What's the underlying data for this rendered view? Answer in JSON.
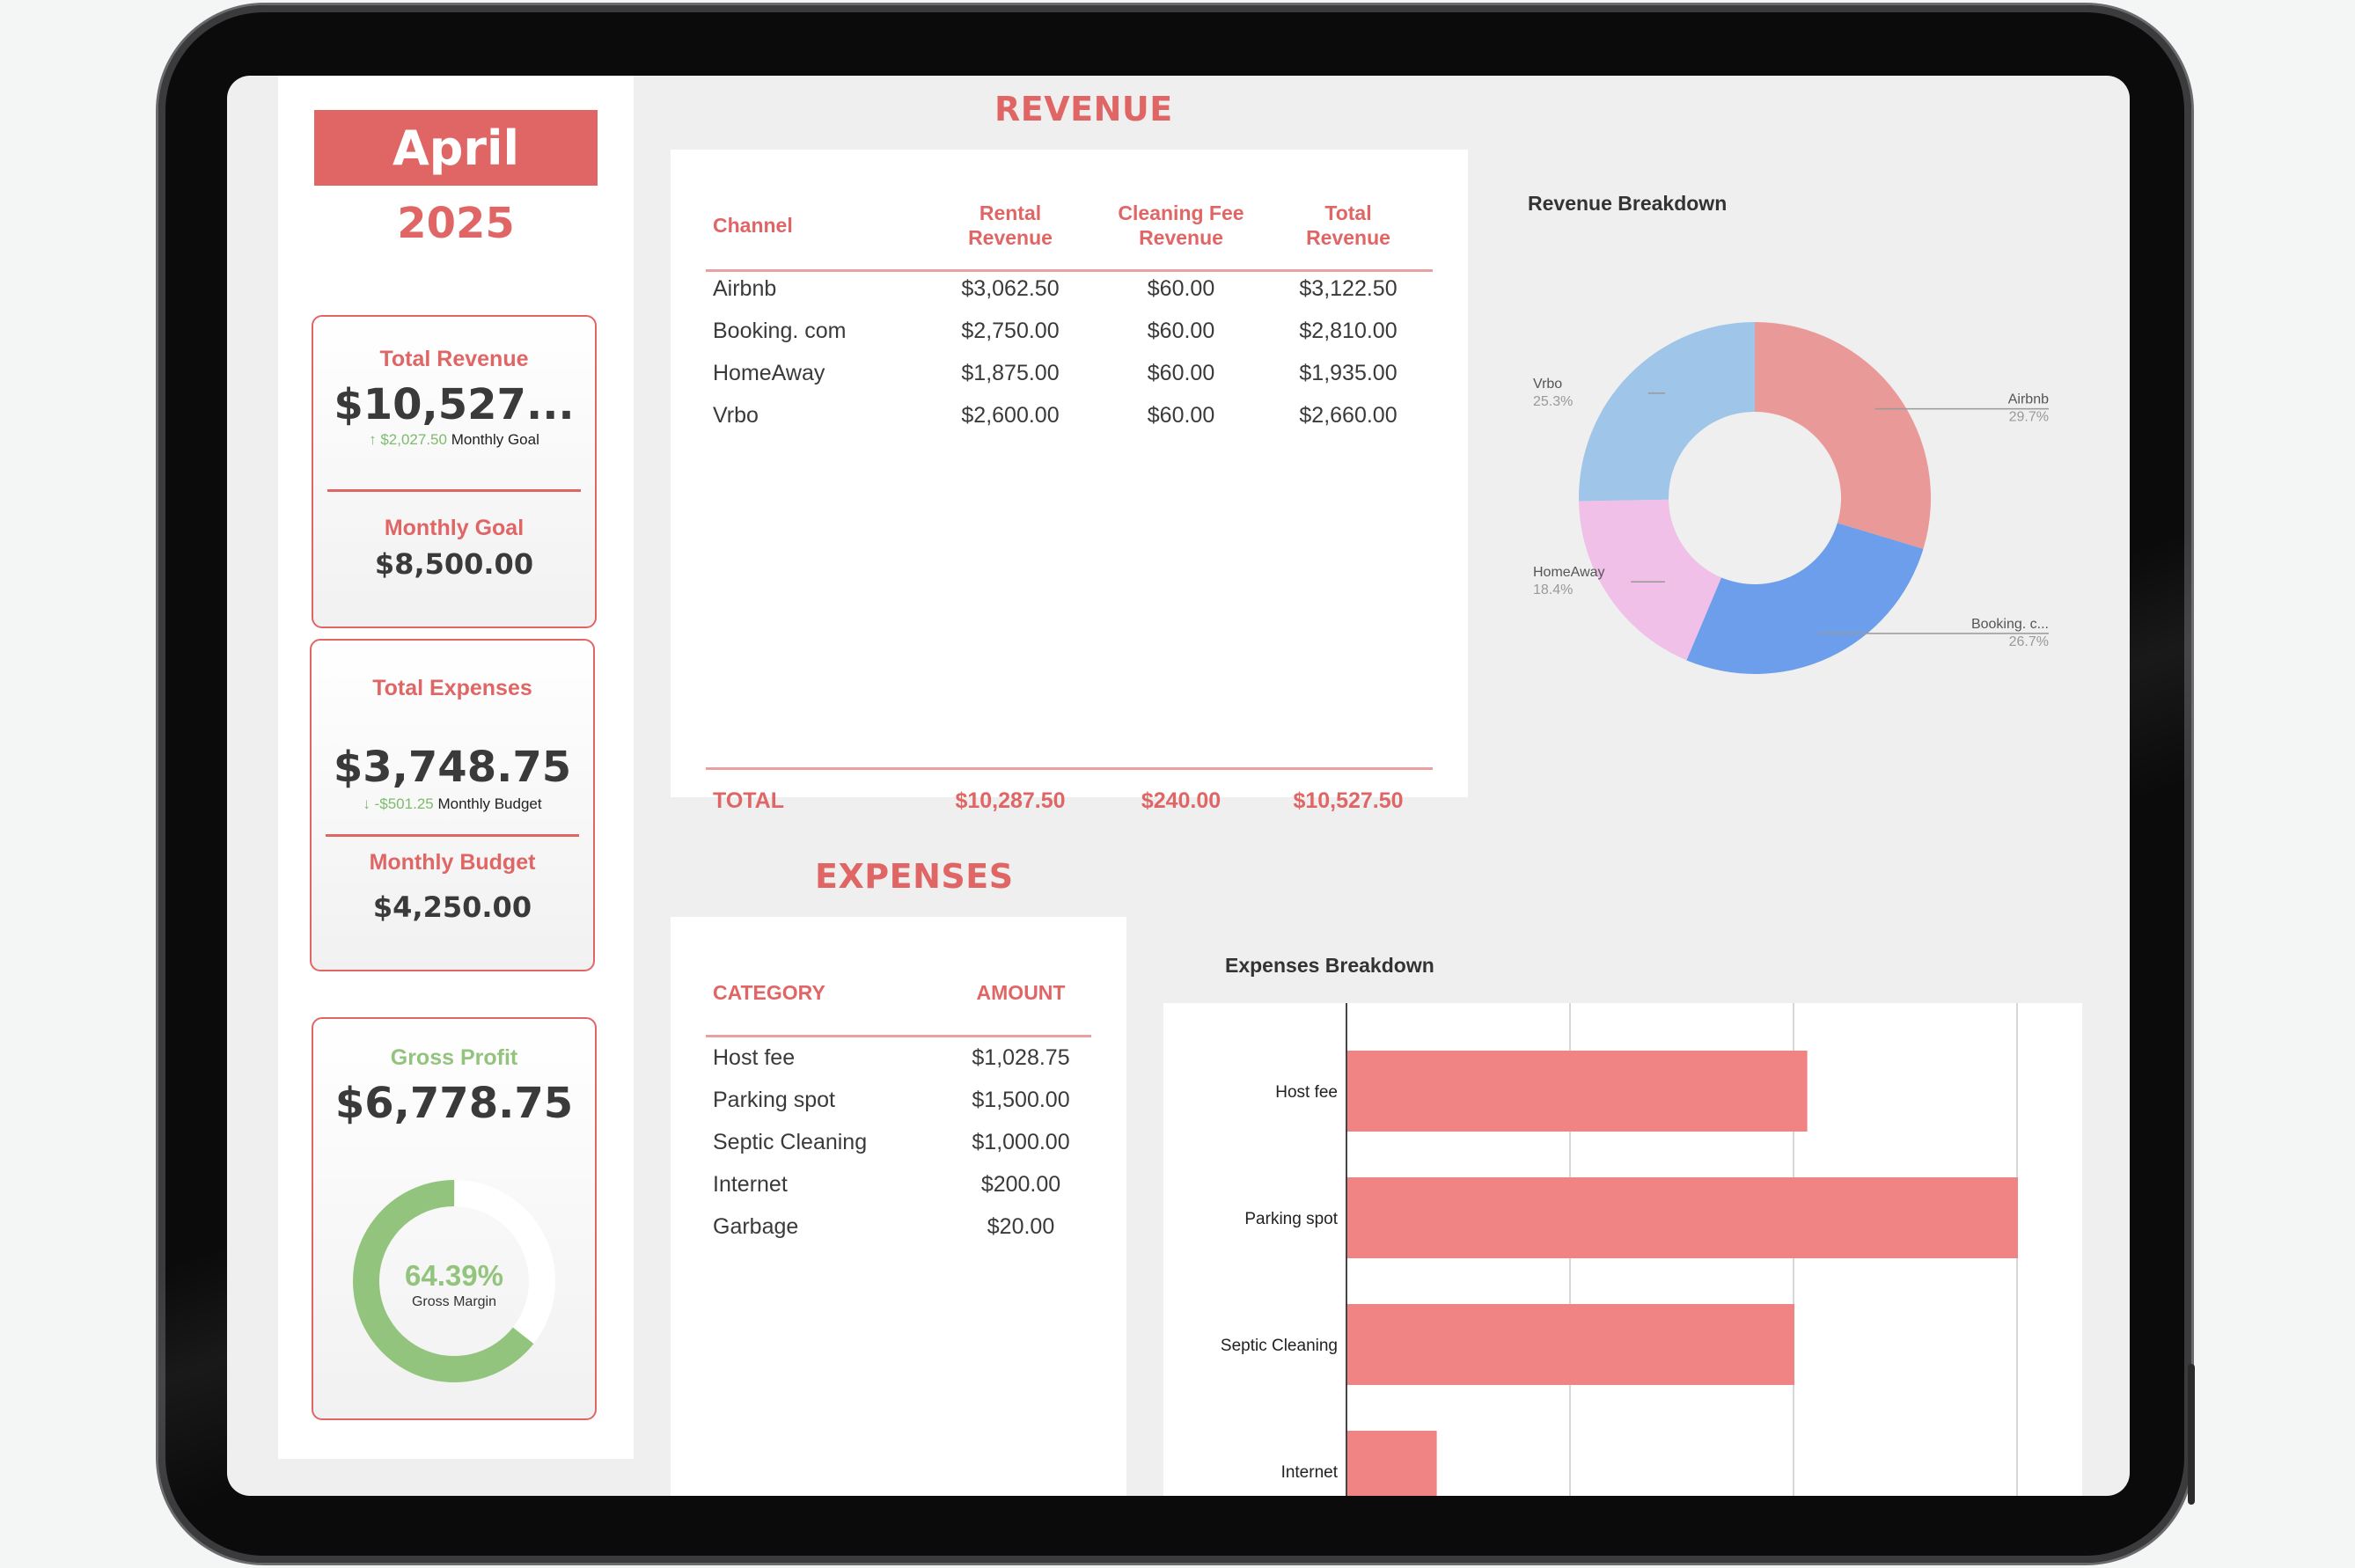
{
  "summary": {
    "month": "April",
    "year": "2025",
    "total_revenue": {
      "label": "Total Revenue",
      "value": "$10,527...",
      "delta": "↑ $2,027.50",
      "delta_note": "Monthly Goal"
    },
    "monthly_goal": {
      "label": "Monthly Goal",
      "value": "$8,500.00"
    },
    "total_expenses": {
      "label": "Total Expenses",
      "value": "$3,748.75",
      "delta": "↓ -$501.25",
      "delta_note": "Monthly Budget"
    },
    "monthly_budget": {
      "label": "Monthly Budget",
      "value": "$4,250.00"
    },
    "gross_profit": {
      "label": "Gross Profit",
      "value": "$6,778.75",
      "gross_margin_pct": "64.39%",
      "gross_margin_label": "Gross Margin",
      "gross_margin_fraction": 0.6439
    }
  },
  "revenue": {
    "title": "REVENUE",
    "headers": {
      "channel": "Channel",
      "rental_1": "Rental",
      "rental_2": "Revenue",
      "cleaning_1": "Cleaning Fee",
      "cleaning_2": "Revenue",
      "total_1": "Total",
      "total_2": "Revenue"
    },
    "rows": [
      {
        "channel": "Airbnb",
        "rental": "$3,062.50",
        "cleaning": "$60.00",
        "total": "$3,122.50"
      },
      {
        "channel": "Booking. com",
        "rental": "$2,750.00",
        "cleaning": "$60.00",
        "total": "$2,810.00"
      },
      {
        "channel": "HomeAway",
        "rental": "$1,875.00",
        "cleaning": "$60.00",
        "total": "$1,935.00"
      },
      {
        "channel": "Vrbo",
        "rental": "$2,600.00",
        "cleaning": "$60.00",
        "total": "$2,660.00"
      }
    ],
    "totals": {
      "label": "TOTAL",
      "rental": "$10,287.50",
      "cleaning": "$240.00",
      "total": "$10,527.50"
    }
  },
  "expenses": {
    "title": "EXPENSES",
    "headers": {
      "category": "CATEGORY",
      "amount": "AMOUNT"
    },
    "rows": [
      {
        "category": "Host fee",
        "amount": "$1,028.75"
      },
      {
        "category": "Parking spot",
        "amount": "$1,500.00"
      },
      {
        "category": "Septic Cleaning",
        "amount": "$1,000.00"
      },
      {
        "category": "Internet",
        "amount": "$200.00"
      },
      {
        "category": "Garbage",
        "amount": "$20.00"
      }
    ]
  },
  "colors": {
    "accent": "#e06666",
    "positive": "#93c47d",
    "airbnb": "#ea9999",
    "booking": "#6d9eeb",
    "homeaway": "#f0c0e8",
    "vrbo": "#9fc5e8",
    "bar": "#f08484"
  },
  "chart_data": [
    {
      "type": "pie",
      "title": "Revenue Breakdown",
      "style": "donut",
      "categories": [
        "Airbnb",
        "Booking. c...",
        "HomeAway",
        "Vrbo"
      ],
      "values": [
        29.7,
        26.7,
        18.4,
        25.3
      ],
      "value_labels": [
        "29.7%",
        "26.7%",
        "18.4%",
        "25.3%"
      ]
    },
    {
      "type": "bar",
      "orientation": "horizontal",
      "title": "Expenses Breakdown",
      "categories": [
        "Host fee",
        "Parking spot",
        "Septic Cleaning",
        "Internet"
      ],
      "values": [
        1028.75,
        1500.0,
        1000.0,
        200.0
      ],
      "xlim": [
        0,
        1500
      ],
      "grid": true
    }
  ]
}
